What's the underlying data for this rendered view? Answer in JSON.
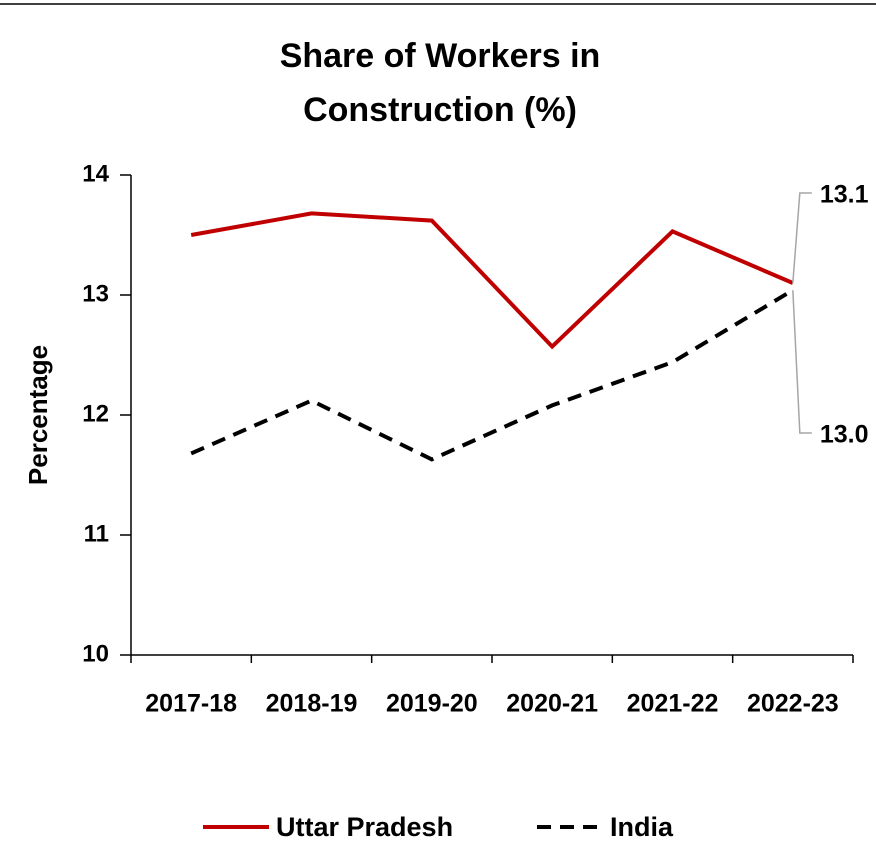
{
  "chart_data": {
    "type": "line",
    "title": [
      "Share of Workers in",
      "Construction (%)"
    ],
    "ylabel": "Percentage",
    "categories": [
      "2017-18",
      "2018-19",
      "2019-20",
      "2020-21",
      "2021-22",
      "2022-23"
    ],
    "series": [
      {
        "name": "Uttar Pradesh",
        "color": "#c00000",
        "dash": false,
        "values": [
          13.5,
          13.68,
          13.62,
          12.57,
          13.53,
          13.1
        ],
        "value_labels": [
          null,
          null,
          null,
          null,
          null,
          "13.1"
        ]
      },
      {
        "name": "India",
        "color": "#000000",
        "dash": true,
        "values": [
          11.68,
          12.12,
          11.63,
          12.08,
          12.44,
          13.04
        ],
        "value_labels": [
          null,
          null,
          null,
          null,
          null,
          "13.0"
        ]
      }
    ],
    "ylim": [
      10,
      14
    ],
    "yticks": [
      10,
      11,
      12,
      13,
      14
    ],
    "grid": false,
    "legend": "bottom"
  }
}
